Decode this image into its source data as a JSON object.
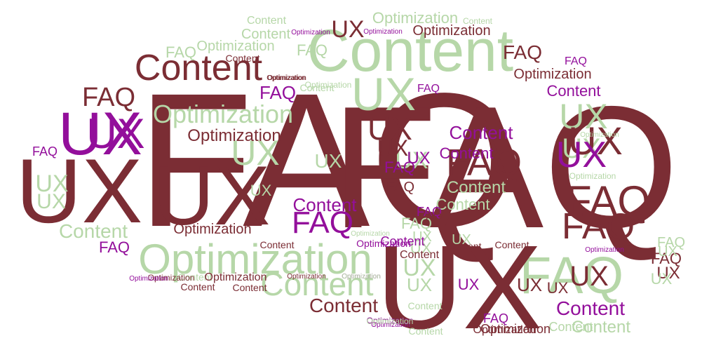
{
  "palette": {
    "dark": "#7b2d34",
    "purple": "#930f9b",
    "green": "#b6d7a8"
  },
  "words": [
    {
      "text": "FAQ",
      "color": "dark"
    },
    {
      "text": "FAQ",
      "color": "dark"
    },
    {
      "text": "UX",
      "color": "dark"
    },
    {
      "text": "UX",
      "color": "dark"
    },
    {
      "text": "Content",
      "color": "green"
    },
    {
      "text": "FAQ",
      "color": "green"
    },
    {
      "text": "Optimization",
      "color": "green"
    },
    {
      "text": "UX",
      "color": "dark"
    },
    {
      "text": "UX",
      "color": "purple"
    },
    {
      "text": "Content",
      "color": "dark"
    },
    {
      "text": "FAQ",
      "color": "dark"
    },
    {
      "text": "UX",
      "color": "green"
    },
    {
      "text": "Optimization",
      "color": "green"
    },
    {
      "text": "UX",
      "color": "green"
    },
    {
      "text": "UX",
      "color": "dark"
    },
    {
      "text": "FAQ",
      "color": "dark"
    },
    {
      "text": "FAQ",
      "color": "dark"
    },
    {
      "text": "UX",
      "color": "green"
    },
    {
      "text": "Content",
      "color": "green"
    },
    {
      "text": "UX",
      "color": "dark"
    },
    {
      "text": "Content",
      "color": "green"
    },
    {
      "text": "FAQ",
      "color": "purple"
    },
    {
      "text": "UX",
      "color": "purple"
    },
    {
      "text": "UX",
      "color": "green"
    },
    {
      "text": "UX",
      "color": "green"
    },
    {
      "text": "Content",
      "color": "purple"
    },
    {
      "text": "Content",
      "color": "purple"
    },
    {
      "text": "FAQ",
      "color": "dark"
    },
    {
      "text": "Content",
      "color": "dark"
    },
    {
      "text": "Optimization",
      "color": "dark"
    },
    {
      "text": "Optimization",
      "color": "dark"
    },
    {
      "text": "Optimization",
      "color": "green"
    },
    {
      "text": "Optimization",
      "color": "dark"
    },
    {
      "text": "Content",
      "color": "purple"
    },
    {
      "text": "UX",
      "color": "dark"
    },
    {
      "text": "FAQ",
      "color": "purple"
    },
    {
      "text": "FAQ",
      "color": "dark"
    },
    {
      "text": "UX",
      "color": "green"
    },
    {
      "text": "UX",
      "color": "green"
    },
    {
      "text": "Content",
      "color": "green"
    },
    {
      "text": "Optimization",
      "color": "green"
    },
    {
      "text": "Optimization",
      "color": "dark"
    },
    {
      "text": "Content",
      "color": "green"
    },
    {
      "text": "FAQ",
      "color": "purple"
    },
    {
      "text": "UX",
      "color": "green"
    },
    {
      "text": "UX",
      "color": "dark"
    },
    {
      "text": "UX",
      "color": "purple"
    },
    {
      "text": "UX",
      "color": "dark"
    },
    {
      "text": "UX",
      "color": "purple"
    },
    {
      "text": "Content",
      "color": "green"
    },
    {
      "text": "Content",
      "color": "green"
    },
    {
      "text": "FAQ",
      "color": "purple"
    },
    {
      "text": "FAQ",
      "color": "dark"
    },
    {
      "text": "FAQ",
      "color": "green"
    },
    {
      "text": "FAQ",
      "color": "green"
    },
    {
      "text": "FAQ",
      "color": "green"
    },
    {
      "text": "FAQ",
      "color": "purple"
    },
    {
      "text": "FAQ",
      "color": "purple"
    },
    {
      "text": "FAQ",
      "color": "dark"
    },
    {
      "text": "FAQ",
      "color": "purple"
    },
    {
      "text": "FAQ",
      "color": "dark"
    },
    {
      "text": "FAQ",
      "color": "purple"
    },
    {
      "text": "FAQ",
      "color": "purple"
    },
    {
      "text": "FAQ",
      "color": "green"
    },
    {
      "text": "UX",
      "color": "green"
    },
    {
      "text": "UX",
      "color": "dark"
    },
    {
      "text": "UX",
      "color": "green"
    },
    {
      "text": "UX",
      "color": "purple"
    },
    {
      "text": "UX",
      "color": "dark"
    },
    {
      "text": "UX",
      "color": "dark"
    },
    {
      "text": "UX",
      "color": "green"
    },
    {
      "text": "UX",
      "color": "green"
    },
    {
      "text": "UX",
      "color": "green"
    },
    {
      "text": "UX",
      "color": "green"
    },
    {
      "text": "UX",
      "color": "green"
    },
    {
      "text": "UX",
      "color": "green"
    },
    {
      "text": "Content",
      "color": "green"
    },
    {
      "text": "Content",
      "color": "dark"
    },
    {
      "text": "Content",
      "color": "dark"
    },
    {
      "text": "Content",
      "color": "dark"
    },
    {
      "text": "Content",
      "color": "dark"
    },
    {
      "text": "Content",
      "color": "dark"
    },
    {
      "text": "Content",
      "color": "purple"
    },
    {
      "text": "Content",
      "color": "purple"
    },
    {
      "text": "Content",
      "color": "purple"
    },
    {
      "text": "Content",
      "color": "green"
    },
    {
      "text": "Content",
      "color": "green"
    },
    {
      "text": "Content",
      "color": "green"
    },
    {
      "text": "Content",
      "color": "dark"
    },
    {
      "text": "Content",
      "color": "green"
    },
    {
      "text": "Content",
      "color": "green"
    },
    {
      "text": "Content",
      "color": "dark"
    },
    {
      "text": "Content",
      "color": "green"
    },
    {
      "text": "Optimization",
      "color": "dark"
    },
    {
      "text": "Optimization",
      "color": "dark"
    },
    {
      "text": "Optimization",
      "color": "dark"
    },
    {
      "text": "Optimization",
      "color": "dark"
    },
    {
      "text": "Optimization",
      "color": "purple"
    },
    {
      "text": "Optimization",
      "color": "purple"
    },
    {
      "text": "Optimization",
      "color": "purple"
    },
    {
      "text": "Optimization",
      "color": "purple"
    },
    {
      "text": "Optimization",
      "color": "purple"
    },
    {
      "text": "Optimization",
      "color": "purple"
    },
    {
      "text": "Optimization",
      "color": "dark"
    },
    {
      "text": "Optimization",
      "color": "green"
    },
    {
      "text": "Optimization",
      "color": "green"
    },
    {
      "text": "Optimization",
      "color": "green"
    },
    {
      "text": "Optimization",
      "color": "green"
    },
    {
      "text": "Optimization",
      "color": "purple"
    },
    {
      "text": "Optimization",
      "color": "purple"
    },
    {
      "text": "Optimization",
      "color": "dark"
    },
    {
      "text": "Optimization",
      "color": "green"
    },
    {
      "text": "Optimization",
      "color": "green"
    },
    {
      "text": "Optimization",
      "color": "dark"
    }
  ]
}
